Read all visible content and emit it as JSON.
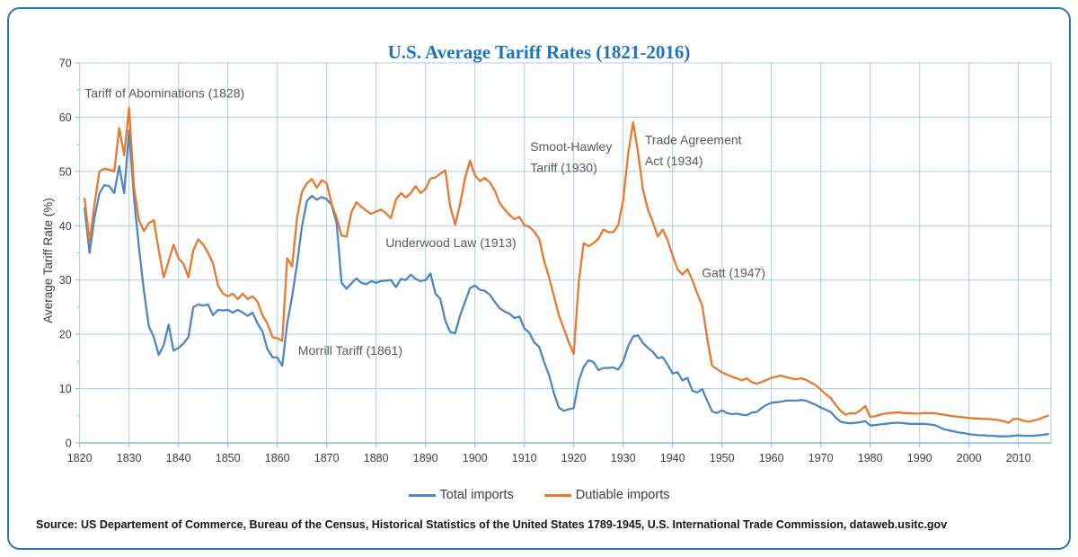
{
  "chart_data": {
    "type": "line",
    "title": "U.S. Average Tariff Rates (1821-2016)",
    "ylabel": "Average Tariff Rate (%)",
    "xlabel": "",
    "x_start_year": 1821,
    "x_end_year": 2016,
    "xlim": [
      1820,
      2016.6
    ],
    "ylim": [
      0,
      70
    ],
    "y_ticks": [
      0,
      10,
      20,
      30,
      40,
      50,
      60,
      70
    ],
    "x_ticks": [
      1820,
      1830,
      1840,
      1850,
      1860,
      1870,
      1880,
      1890,
      1900,
      1910,
      1920,
      1930,
      1940,
      1950,
      1960,
      1970,
      1980,
      1990,
      2000,
      2010
    ],
    "grid": true,
    "legend_position": "bottom",
    "colors": {
      "total_imports": "#4e87c3",
      "dutiable_imports": "#e8792e",
      "gridline": "#a9cbec",
      "axis": "#89b8e0",
      "border": "#2e74b5",
      "title": "#1b75bc",
      "tick_label": "#404040",
      "annotation": "#595959"
    },
    "series": [
      {
        "name": "Total imports",
        "color": "#4e87c3",
        "values": [
          43.2,
          35,
          41.5,
          46,
          47.5,
          47.3,
          46,
          51,
          46,
          57.5,
          45,
          36,
          28,
          21.5,
          19.5,
          16.2,
          18,
          21.8,
          17,
          17.5,
          18.3,
          19.5,
          25,
          25.5,
          25.3,
          25.5,
          23.5,
          24.5,
          24.4,
          24.5,
          24,
          24.5,
          24,
          23.4,
          24,
          22,
          20.5,
          17.3,
          15.8,
          15.7,
          14.2,
          22,
          27,
          33,
          40,
          44.6,
          45.5,
          44.8,
          45.3,
          44.9,
          43.8,
          40.5,
          29.5,
          28.4,
          29.4,
          30.3,
          29.5,
          29.2,
          29.8,
          29.5,
          29.8,
          29.9,
          30,
          28.7,
          30.2,
          30,
          31,
          30.2,
          29.8,
          30,
          31.2,
          27.5,
          26.5,
          22.5,
          20.4,
          20.2,
          23.5,
          26,
          28.5,
          29,
          28.2,
          28,
          27.3,
          26,
          24.8,
          24.2,
          23.8,
          23,
          23.3,
          21.1,
          20.3,
          18.5,
          17.7,
          14.9,
          12.5,
          9.1,
          6.5,
          5.9,
          6.2,
          6.4,
          11.4,
          14,
          15.2,
          14.9,
          13.4,
          13.8,
          13.8,
          13.9,
          13.5,
          15,
          17.8,
          19.6,
          19.8,
          18.4,
          17.5,
          16.8,
          15.6,
          15.8,
          14.4,
          12.8,
          13,
          11.5,
          12,
          9.6,
          9.3,
          9.9,
          7.8,
          5.8,
          5.5,
          6,
          5.5,
          5.3,
          5.4,
          5.2,
          5.1,
          5.6,
          5.7,
          6.4,
          7,
          7.4,
          7.5,
          7.6,
          7.8,
          7.8,
          7.8,
          7.9,
          7.8,
          7.4,
          7,
          6.5,
          6.1,
          5.7,
          4.7,
          3.9,
          3.7,
          3.6,
          3.7,
          3.8,
          4,
          3.2,
          3.3,
          3.4,
          3.5,
          3.6,
          3.7,
          3.7,
          3.6,
          3.5,
          3.5,
          3.5,
          3.5,
          3.4,
          3.3,
          2.9,
          2.5,
          2.3,
          2.1,
          1.9,
          1.8,
          1.6,
          1.5,
          1.4,
          1.4,
          1.3,
          1.3,
          1.2,
          1.2,
          1.2,
          1.3,
          1.4,
          1.3,
          1.3,
          1.3,
          1.4,
          1.5,
          1.6
        ]
      },
      {
        "name": "Dutiable imports",
        "color": "#e8792e",
        "values": [
          45,
          37,
          44,
          50,
          50.5,
          50.3,
          50,
          58,
          53,
          61.7,
          47,
          41,
          39,
          40.5,
          41,
          35.5,
          30.5,
          33.5,
          36.5,
          34,
          33,
          30.5,
          35.5,
          37.5,
          36.5,
          35,
          33,
          29,
          27.5,
          27,
          27.5,
          26.5,
          27.5,
          26.5,
          27,
          26,
          23.5,
          22,
          19.5,
          19.3,
          18.8,
          34,
          32.5,
          41.5,
          46.3,
          47.8,
          48.6,
          47,
          48.4,
          47.8,
          44,
          41.5,
          38.2,
          38,
          42.5,
          44.3,
          43.5,
          42.8,
          42.2,
          42.6,
          43,
          42.3,
          41.4,
          44.8,
          46,
          45.2,
          46,
          47.3,
          46,
          46.8,
          48.7,
          48.9,
          49.6,
          50.2,
          43.5,
          40.2,
          44,
          48.8,
          52,
          49.3,
          48.2,
          48.8,
          48,
          46.5,
          44.2,
          43,
          42,
          41.2,
          41.6,
          40.1,
          39.8,
          38.9,
          37.6,
          33.5,
          30.5,
          27,
          23.5,
          21,
          18.5,
          16.4,
          29.5,
          36.8,
          36.2,
          36.8,
          37.6,
          39.3,
          38.8,
          38.8,
          40.1,
          44.7,
          53.2,
          59.1,
          53.6,
          46.7,
          43,
          40.7,
          38,
          39.3,
          37.3,
          34.5,
          32,
          31,
          32,
          30,
          27.5,
          25.3,
          19.3,
          14.2,
          13.6,
          13,
          12.6,
          12.2,
          11.9,
          11.5,
          11.9,
          11.2,
          10.9,
          11.2,
          11.6,
          12,
          12.2,
          12.4,
          12.1,
          11.9,
          11.7,
          11.9,
          11.6,
          11.1,
          10.6,
          9.8,
          9,
          8.3,
          7,
          5.9,
          5.2,
          5.5,
          5.4,
          6,
          6.8,
          4.8,
          4.9,
          5.2,
          5.4,
          5.5,
          5.6,
          5.6,
          5.5,
          5.5,
          5.4,
          5.4,
          5.5,
          5.5,
          5.5,
          5.3,
          5.2,
          5,
          4.9,
          4.8,
          4.7,
          4.6,
          4.5,
          4.5,
          4.4,
          4.4,
          4.3,
          4.2,
          4,
          3.7,
          4.4,
          4.4,
          4.1,
          3.9,
          4.1,
          4.3,
          4.7,
          5
        ]
      }
    ],
    "annotations": [
      {
        "lines": [
          "Tariff of Abominations (1828)"
        ],
        "at_year": 1821.0,
        "at_value": 63.6
      },
      {
        "lines": [
          "Morrill Tariff  (1861)"
        ],
        "at_year": 1864.2,
        "at_value": 16.2
      },
      {
        "lines": [
          "Underwood  Law (1913)"
        ],
        "at_year": 1881.9,
        "at_value": 36.1
      },
      {
        "lines": [
          "Smoot-Hawley",
          "Tariff (1930)"
        ],
        "at_year": 1911.2,
        "at_value": 53.8
      },
      {
        "lines": [
          "Trade Agreement",
          "Act (1934)"
        ],
        "at_year": 1934.4,
        "at_value": 55.0
      },
      {
        "lines": [
          "Gatt (1947)"
        ],
        "at_year": 1945.9,
        "at_value": 30.5
      }
    ],
    "source": "Source: US Departement of Commerce, Bureau of the Census, Historical Statistics of the United States 1789-1945, U.S. International Trade Commission, dataweb.usitc.gov"
  }
}
